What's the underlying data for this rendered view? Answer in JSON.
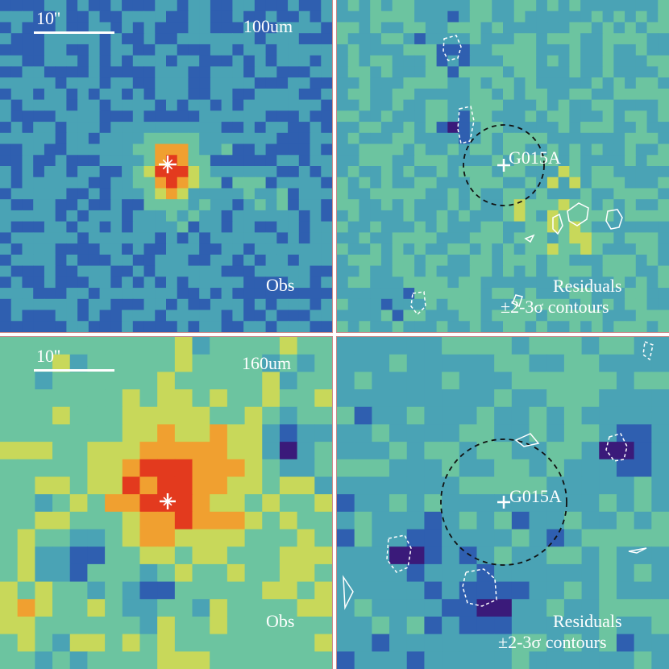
{
  "panels": [
    {
      "id": "obs-100",
      "scale_label": "10''",
      "band_label": "100um",
      "corner_label": "Obs",
      "colormap": "spectral",
      "contours": false
    },
    {
      "id": "res-100",
      "source_label": "G015A",
      "corner_label_line1": "Residuals",
      "corner_label_line2": "±2-3σ contours",
      "contours": true
    },
    {
      "id": "obs-160",
      "scale_label": "10''",
      "band_label": "160um",
      "corner_label": "Obs",
      "contours": false
    },
    {
      "id": "res-160",
      "source_label": "G015A",
      "corner_label_line1": "Residuals",
      "corner_label_line2": "±2-3σ contours",
      "contours": true
    }
  ],
  "colors": {
    "deep": "#3a1a7a",
    "low": "#2f5fb0",
    "mid": "#4aa3b5",
    "midhigh": "#6cc4a0",
    "high": "#c8d85a",
    "hot": "#f0a030",
    "peak": "#e33a1e",
    "contour": "#ffffff",
    "circle": "#111111"
  }
}
